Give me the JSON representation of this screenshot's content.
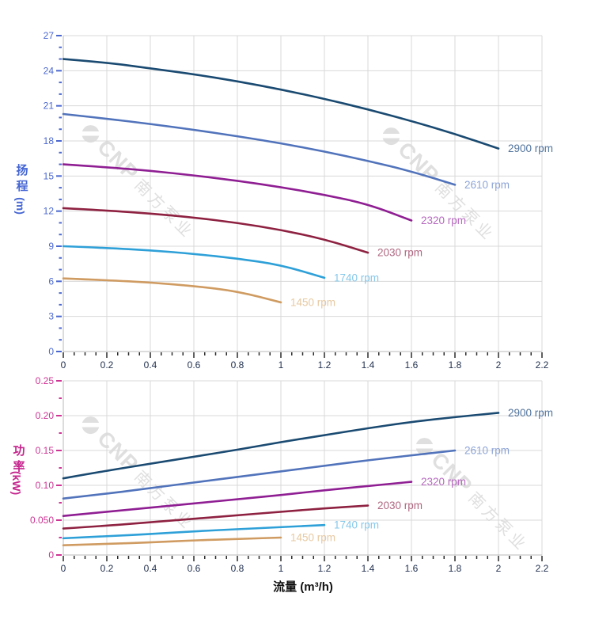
{
  "watermark": {
    "brand": "CNP",
    "company": "南方泵业"
  },
  "chart_data": [
    {
      "type": "line",
      "id": "head-chart",
      "title": "",
      "xlabel": "",
      "ylabel": "扬程 (m)",
      "ylabel_chinese": "扬程",
      "ylabel_unit": "(m)",
      "xlim": [
        0,
        2.2
      ],
      "ylim": [
        0,
        27
      ],
      "grid": true,
      "x_tick_step": 0.2,
      "x_minor_step": 0.05,
      "y_tick_step": 3,
      "y_minor_step": 1,
      "x_tick_labels": [
        "0",
        "0.2",
        "0.4",
        "0.6",
        "0.8",
        "1",
        "1.2",
        "1.4",
        "1.6",
        "1.8",
        "2",
        "2.2"
      ],
      "y_tick_labels": [
        "0",
        "3",
        "6",
        "9",
        "12",
        "15",
        "18",
        "21",
        "24",
        "27"
      ],
      "axis_label_color": "#4566d4",
      "tick_text_color": "#4a67d0",
      "x_tick_color": "#233250",
      "legend_position": "right-of-curve-end",
      "series": [
        {
          "name": "2900 rpm",
          "color": "#1a4a71",
          "label_color": "#51749d",
          "x": [
            0,
            0.2,
            0.4,
            0.6,
            0.8,
            1.0,
            1.2,
            1.4,
            1.6,
            1.8,
            2.0
          ],
          "y": [
            25.0,
            24.7,
            24.2,
            23.7,
            23.1,
            22.4,
            21.6,
            20.7,
            19.7,
            18.6,
            17.35
          ]
        },
        {
          "name": "2610 rpm",
          "color": "#5173bb",
          "label_color": "#8da4d6",
          "x": [
            0,
            0.2,
            0.4,
            0.6,
            0.8,
            1.0,
            1.2,
            1.4,
            1.6,
            1.8
          ],
          "y": [
            20.3,
            19.9,
            19.45,
            18.95,
            18.4,
            17.8,
            17.1,
            16.3,
            15.4,
            14.25
          ]
        },
        {
          "name": "2320 rpm",
          "color": "#8f1e93",
          "label_color": "#b569be",
          "x": [
            0,
            0.2,
            0.4,
            0.6,
            0.8,
            1.0,
            1.2,
            1.4,
            1.6
          ],
          "y": [
            16.0,
            15.75,
            15.45,
            15.05,
            14.6,
            14.05,
            13.4,
            12.6,
            11.2
          ]
        },
        {
          "name": "2030 rpm",
          "color": "#8e2141",
          "label_color": "#b06781",
          "x": [
            0,
            0.2,
            0.4,
            0.6,
            0.8,
            1.0,
            1.2,
            1.4
          ],
          "y": [
            12.25,
            12.05,
            11.8,
            11.45,
            11.0,
            10.4,
            9.6,
            8.45
          ]
        },
        {
          "name": "1740 rpm",
          "color": "#2ea0d8",
          "label_color": "#86c8ea",
          "x": [
            0,
            0.2,
            0.4,
            0.6,
            0.8,
            1.0,
            1.2
          ],
          "y": [
            9.0,
            8.85,
            8.65,
            8.35,
            7.95,
            7.4,
            6.3
          ]
        },
        {
          "name": "1450 rpm",
          "color": "#cf9b61",
          "label_color": "#e7c9a1",
          "x": [
            0,
            0.2,
            0.4,
            0.6,
            0.8,
            1.0
          ],
          "y": [
            6.25,
            6.1,
            5.9,
            5.6,
            5.15,
            4.2
          ]
        }
      ]
    },
    {
      "type": "line",
      "id": "power-chart",
      "title": "",
      "xlabel": "流量 (m³/h)",
      "ylabel": "功率 (kW)",
      "ylabel_chinese": "功率",
      "ylabel_unit": "(kW)",
      "xlim": [
        0,
        2.2
      ],
      "ylim": [
        0,
        0.25
      ],
      "grid": true,
      "x_tick_step": 0.2,
      "x_minor_step": 0.05,
      "y_tick_step": 0.05,
      "y_minor_step": 0.025,
      "x_tick_labels": [
        "0",
        "0.2",
        "0.4",
        "0.6",
        "0.8",
        "1",
        "1.2",
        "1.4",
        "1.6",
        "1.8",
        "2",
        "2.2"
      ],
      "y_tick_labels": [
        "0",
        "0.050",
        "0.10",
        "0.15",
        "0.20",
        "0.25"
      ],
      "axis_label_color": "#c5268e",
      "tick_text_color": "#cd3494",
      "x_tick_color": "#233250",
      "legend_position": "right-of-curve-end",
      "series": [
        {
          "name": "2900 rpm",
          "color": "#1a4a71",
          "label_color": "#51749d",
          "x": [
            0,
            0.2,
            0.4,
            0.6,
            0.8,
            1.0,
            1.2,
            1.4,
            1.6,
            1.8,
            2.0
          ],
          "y": [
            0.11,
            0.121,
            0.131,
            0.141,
            0.151,
            0.162,
            0.172,
            0.182,
            0.191,
            0.198,
            0.204
          ]
        },
        {
          "name": "2610 rpm",
          "color": "#5173bb",
          "label_color": "#8da4d6",
          "x": [
            0,
            0.2,
            0.4,
            0.6,
            0.8,
            1.0,
            1.2,
            1.4,
            1.6,
            1.8
          ],
          "y": [
            0.081,
            0.088,
            0.096,
            0.104,
            0.112,
            0.12,
            0.128,
            0.136,
            0.143,
            0.15
          ]
        },
        {
          "name": "2320 rpm",
          "color": "#8f1e93",
          "label_color": "#b569be",
          "x": [
            0,
            0.2,
            0.4,
            0.6,
            0.8,
            1.0,
            1.2,
            1.4,
            1.6
          ],
          "y": [
            0.056,
            0.062,
            0.068,
            0.074,
            0.08,
            0.086,
            0.093,
            0.099,
            0.105
          ]
        },
        {
          "name": "2030 rpm",
          "color": "#8e2141",
          "label_color": "#b06781",
          "x": [
            0,
            0.2,
            0.4,
            0.6,
            0.8,
            1.0,
            1.2,
            1.4
          ],
          "y": [
            0.038,
            0.042,
            0.047,
            0.052,
            0.057,
            0.062,
            0.067,
            0.071
          ]
        },
        {
          "name": "1740 rpm",
          "color": "#2ea0d8",
          "label_color": "#86c8ea",
          "x": [
            0,
            0.2,
            0.4,
            0.6,
            0.8,
            1.0,
            1.2
          ],
          "y": [
            0.024,
            0.027,
            0.03,
            0.034,
            0.037,
            0.04,
            0.043
          ]
        },
        {
          "name": "1450 rpm",
          "color": "#cf9b61",
          "label_color": "#e7c9a1",
          "x": [
            0,
            0.2,
            0.4,
            0.6,
            0.8,
            1.0
          ],
          "y": [
            0.014,
            0.016,
            0.018,
            0.021,
            0.023,
            0.025
          ]
        }
      ]
    }
  ]
}
